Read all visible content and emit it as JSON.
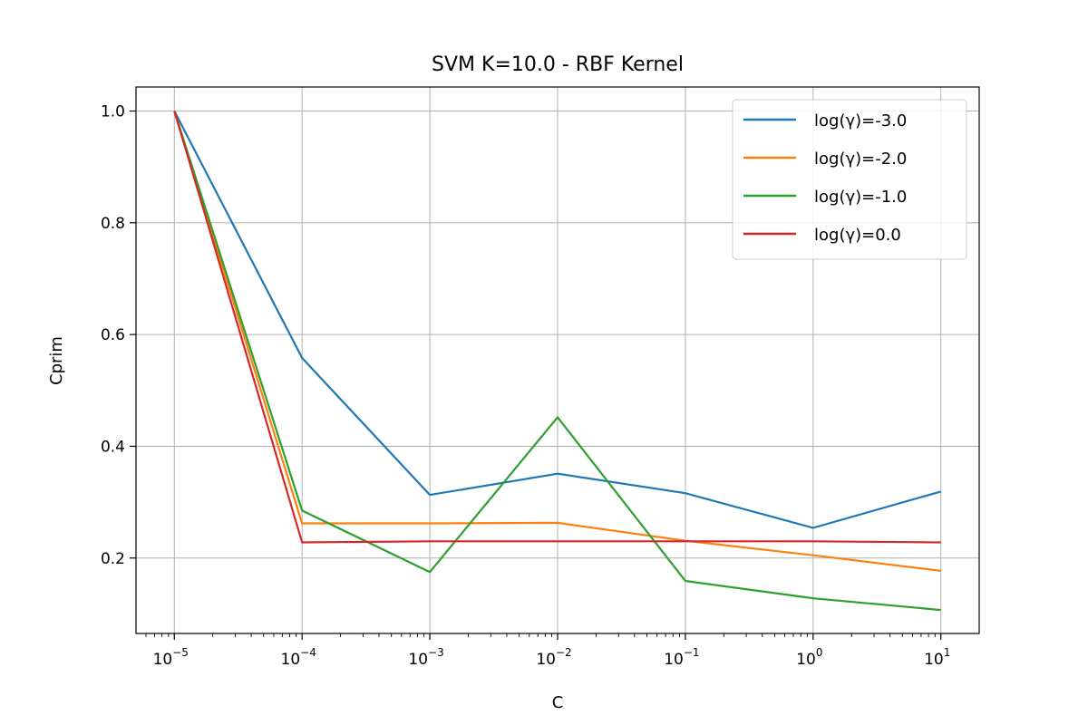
{
  "chart_data": {
    "type": "line",
    "title": "SVM K=10.0 - RBF Kernel",
    "xlabel": "C",
    "ylabel": "Cprim",
    "xscale": "log",
    "x": [
      1e-05,
      0.0001,
      0.001,
      0.01,
      0.1,
      1,
      10
    ],
    "xticks": [
      {
        "base": "10",
        "exp": "−5"
      },
      {
        "base": "10",
        "exp": "−4"
      },
      {
        "base": "10",
        "exp": "−3"
      },
      {
        "base": "10",
        "exp": "−2"
      },
      {
        "base": "10",
        "exp": "−1"
      },
      {
        "base": "10",
        "exp": "0"
      },
      {
        "base": "10",
        "exp": "1"
      }
    ],
    "yticks": [
      "0.2",
      "0.4",
      "0.6",
      "0.8",
      "1.0"
    ],
    "ylim": [
      0.065,
      1.043
    ],
    "grid": true,
    "legend_position": "top-right",
    "series": [
      {
        "name": "log(γ)=-3.0",
        "color": "#1f77b4",
        "values": [
          1.0,
          0.558,
          0.313,
          0.351,
          0.316,
          0.254,
          0.319
        ]
      },
      {
        "name": "log(γ)=-2.0",
        "color": "#ff7f0e",
        "values": [
          1.0,
          0.262,
          0.262,
          0.263,
          0.231,
          0.205,
          0.177
        ]
      },
      {
        "name": "log(γ)=-1.0",
        "color": "#2ca02c",
        "values": [
          1.0,
          0.285,
          0.175,
          0.452,
          0.159,
          0.128,
          0.107
        ]
      },
      {
        "name": "log(γ)=0.0",
        "color": "#d62728",
        "values": [
          1.0,
          0.228,
          0.23,
          0.23,
          0.23,
          0.23,
          0.228
        ]
      }
    ]
  }
}
